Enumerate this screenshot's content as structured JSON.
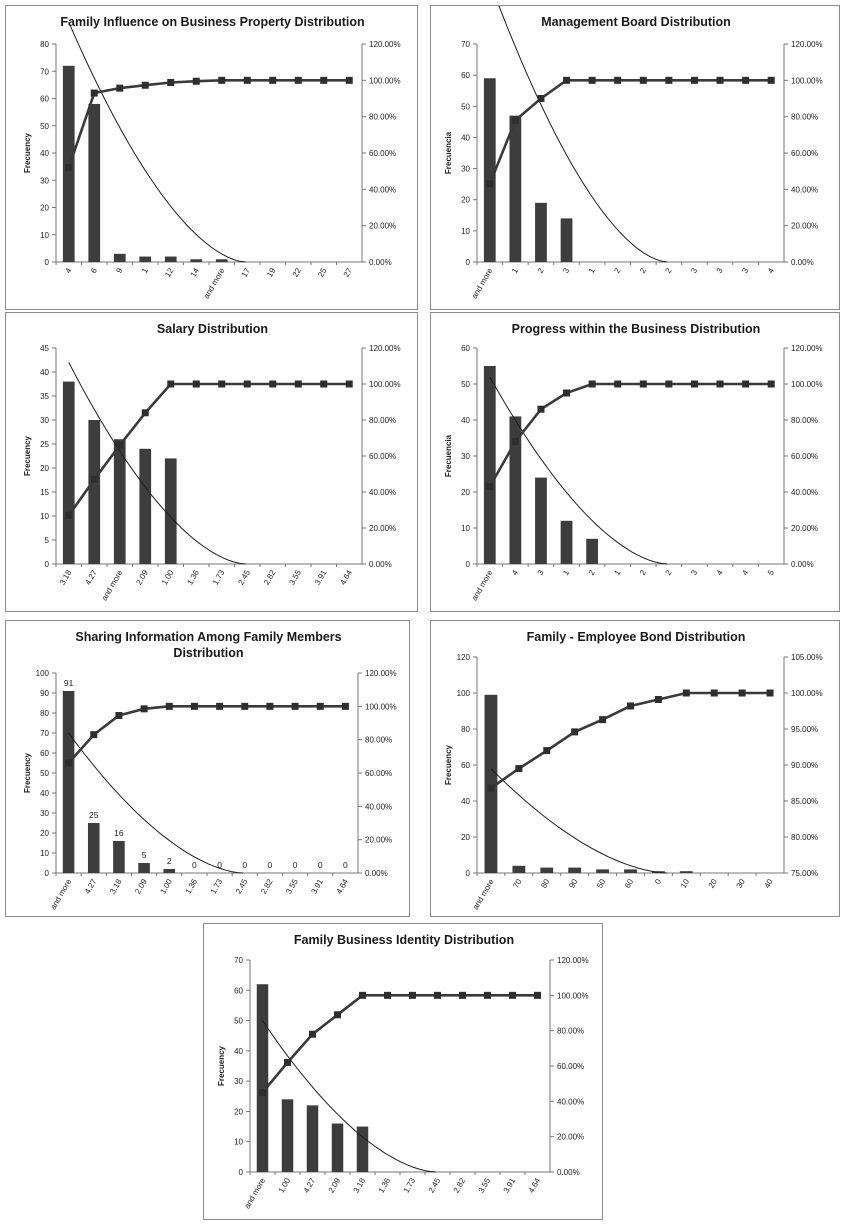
{
  "colors": {
    "bar": "#3d3d3d",
    "line": "#3a3a3a",
    "marker": "#2e2e2e",
    "trend": "#1f1f1f",
    "border": "#8c8c8c"
  },
  "chart_data": [
    {
      "id": "c1",
      "type": "bar",
      "title": [
        "Family Influence on Business Property Distribution"
      ],
      "ylabel": "Frecuency",
      "categories": [
        "4",
        "6",
        "9",
        "1",
        "12",
        "14",
        "and more",
        "17",
        "19",
        "22",
        "25",
        "27"
      ],
      "values": [
        72,
        58,
        3,
        2,
        2,
        1,
        1,
        0,
        0,
        0,
        0,
        0
      ],
      "cumulative": [
        52,
        93,
        95.7,
        97.3,
        98.8,
        99.5,
        100,
        100,
        100,
        100,
        100,
        100
      ],
      "trend_start": 88,
      "ylim": [
        0,
        80
      ],
      "yticks": [
        0,
        10,
        20,
        30,
        40,
        50,
        60,
        70,
        80
      ],
      "y2lim": [
        0,
        120
      ],
      "y2ticks": [
        "0.00%",
        "20.00%",
        "40.00%",
        "60.00%",
        "80.00%",
        "100.00%",
        "120.00%"
      ]
    },
    {
      "id": "c2",
      "type": "bar",
      "title": [
        "Management Board Distribution"
      ],
      "ylabel": "Frecuencia",
      "categories": [
        "and more",
        "1",
        "2",
        "3",
        "1",
        "2",
        "2",
        "2",
        "3",
        "3",
        "3",
        "4"
      ],
      "values": [
        59,
        47,
        19,
        14,
        0,
        0,
        0,
        0,
        0,
        0,
        0,
        0
      ],
      "cumulative": [
        43,
        78,
        90,
        100,
        100,
        100,
        100,
        100,
        100,
        100,
        100,
        100
      ],
      "trend_start": 90,
      "ylim": [
        0,
        70
      ],
      "yticks": [
        0,
        10,
        20,
        30,
        40,
        50,
        60,
        70
      ],
      "y2lim": [
        0,
        120
      ],
      "y2ticks": [
        "0.00%",
        "20.00%",
        "40.00%",
        "60.00%",
        "80.00%",
        "100.00%",
        "120.00%"
      ]
    },
    {
      "id": "c3",
      "type": "bar",
      "title": [
        "Salary Distribution"
      ],
      "ylabel": "Frecuency",
      "categories": [
        "3.18",
        "4.27",
        "and more",
        "2.09",
        "1.00",
        "1.36",
        "1.73",
        "2.45",
        "2.82",
        "3.55",
        "3.91",
        "4.64"
      ],
      "values": [
        38,
        30,
        26,
        24,
        22,
        0,
        0,
        0,
        0,
        0,
        0,
        0
      ],
      "cumulative": [
        27,
        47,
        66,
        84,
        100,
        100,
        100,
        100,
        100,
        100,
        100,
        100
      ],
      "trend_start": 42,
      "ylim": [
        0,
        45
      ],
      "yticks": [
        0,
        5,
        10,
        15,
        20,
        25,
        30,
        35,
        40,
        45
      ],
      "y2lim": [
        0,
        120
      ],
      "y2ticks": [
        "0.00%",
        "20.00%",
        "40.00%",
        "60.00%",
        "80.00%",
        "100.00%",
        "120.00%"
      ]
    },
    {
      "id": "c4",
      "type": "bar",
      "title": [
        "Progress within the Business Distribution"
      ],
      "ylabel": "Frecuencia",
      "categories": [
        "and more",
        "4",
        "3",
        "1",
        "2",
        "1",
        "2",
        "2",
        "3",
        "4",
        "4",
        "5"
      ],
      "values": [
        55,
        41,
        24,
        12,
        7,
        0,
        0,
        0,
        0,
        0,
        0,
        0
      ],
      "cumulative": [
        43,
        68,
        86,
        95,
        100,
        100,
        100,
        100,
        100,
        100,
        100,
        100
      ],
      "trend_start": 52,
      "ylim": [
        0,
        60
      ],
      "yticks": [
        0,
        10,
        20,
        30,
        40,
        50,
        60
      ],
      "y2lim": [
        0,
        120
      ],
      "y2ticks": [
        "0.00%",
        "20.00%",
        "40.00%",
        "60.00%",
        "80.00%",
        "100.00%",
        "120.00%"
      ]
    },
    {
      "id": "c5",
      "type": "bar",
      "title": [
        "Sharing Information Among Family Members",
        "Distribution"
      ],
      "ylabel": "Frecuency",
      "categories": [
        "and more",
        "4.27",
        "3.18",
        "2.09",
        "1.00",
        "1.36",
        "1.73",
        "2.45",
        "2.82",
        "3.55",
        "3.91",
        "4.64"
      ],
      "values": [
        91,
        25,
        16,
        5,
        2,
        0,
        0,
        0,
        0,
        0,
        0,
        0
      ],
      "data_labels": [
        "91",
        "25",
        "16",
        "5",
        "2",
        "0",
        "0",
        "0",
        "0",
        "0",
        "0",
        "0"
      ],
      "cumulative": [
        66,
        83,
        94.5,
        98.5,
        100,
        100,
        100,
        100,
        100,
        100,
        100,
        100
      ],
      "trend_start": 70,
      "ylim": [
        0,
        100
      ],
      "yticks": [
        0,
        10,
        20,
        30,
        40,
        50,
        60,
        70,
        80,
        90,
        100
      ],
      "y2lim": [
        0,
        120
      ],
      "y2ticks": [
        "0.00%",
        "20.00%",
        "40.00%",
        "60.00%",
        "80.00%",
        "100.00%",
        "120.00%"
      ]
    },
    {
      "id": "c6",
      "type": "bar",
      "title": [
        "Family - Employee Bond Distribution"
      ],
      "ylabel": "Frecuency",
      "categories": [
        "and more",
        "70",
        "80",
        "90",
        "50",
        "60",
        "0",
        "10",
        "20",
        "30",
        "40"
      ],
      "values": [
        99,
        4,
        3,
        3,
        2,
        2,
        1,
        1,
        0,
        0,
        0
      ],
      "cumulative": [
        86.8,
        89.5,
        92,
        94.6,
        96.3,
        98.2,
        99.1,
        100,
        100,
        100,
        100
      ],
      "trend_start": 58,
      "ylim": [
        0,
        120
      ],
      "yticks": [
        0,
        20,
        40,
        60,
        80,
        100,
        120
      ],
      "y2lim": [
        75,
        105
      ],
      "y2ticks": [
        "75.00%",
        "80.00%",
        "85.00%",
        "90.00%",
        "95.00%",
        "100.00%",
        "105.00%"
      ]
    },
    {
      "id": "c7",
      "type": "bar",
      "title": [
        "Family Business Identity Distribution"
      ],
      "ylabel": "Frecuency",
      "categories": [
        "and more",
        "1.00",
        "4.27",
        "2.09",
        "3.18",
        "1.36",
        "1.73",
        "2.45",
        "2.82",
        "3.55",
        "3.91",
        "4.64"
      ],
      "values": [
        62,
        24,
        22,
        16,
        15,
        0,
        0,
        0,
        0,
        0,
        0,
        0
      ],
      "cumulative": [
        45,
        62,
        78,
        89,
        100,
        100,
        100,
        100,
        100,
        100,
        100,
        100
      ],
      "trend_start": 50,
      "ylim": [
        0,
        70
      ],
      "yticks": [
        0,
        10,
        20,
        30,
        40,
        50,
        60,
        70
      ],
      "y2lim": [
        0,
        120
      ],
      "y2ticks": [
        "0.00%",
        "20.00%",
        "40.00%",
        "60.00%",
        "80.00%",
        "100.00%",
        "120.00%"
      ]
    }
  ]
}
